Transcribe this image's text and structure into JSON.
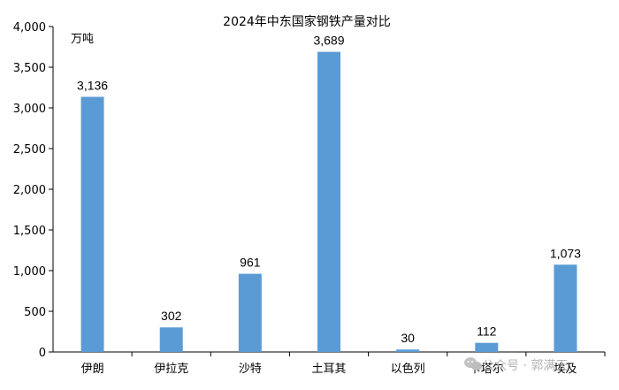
{
  "chart_data": {
    "type": "bar",
    "title": "2024年中东国家钢铁产量对比",
    "unit": "万吨",
    "categories": [
      "伊朗",
      "伊拉克",
      "沙特",
      "土耳其",
      "以色列",
      "卡塔尔",
      "埃及"
    ],
    "values": [
      3136,
      302,
      961,
      3689,
      30,
      112,
      1073
    ],
    "value_labels": [
      "3,136",
      "302",
      "961",
      "3,689",
      "30",
      "112",
      "1,073"
    ],
    "ylim": [
      0,
      4000
    ],
    "yticks": [
      0,
      500,
      1000,
      1500,
      2000,
      2500,
      3000,
      3500,
      4000
    ],
    "ytick_labels": [
      "0",
      "500",
      "1,000",
      "1,500",
      "2,000",
      "2,500",
      "3,000",
      "3,500",
      "4,000"
    ],
    "grid": false,
    "bar_color": "#5B9BD5"
  },
  "watermark": {
    "text": "公众号 · 郭满天",
    "icon": "wechat-icon"
  }
}
